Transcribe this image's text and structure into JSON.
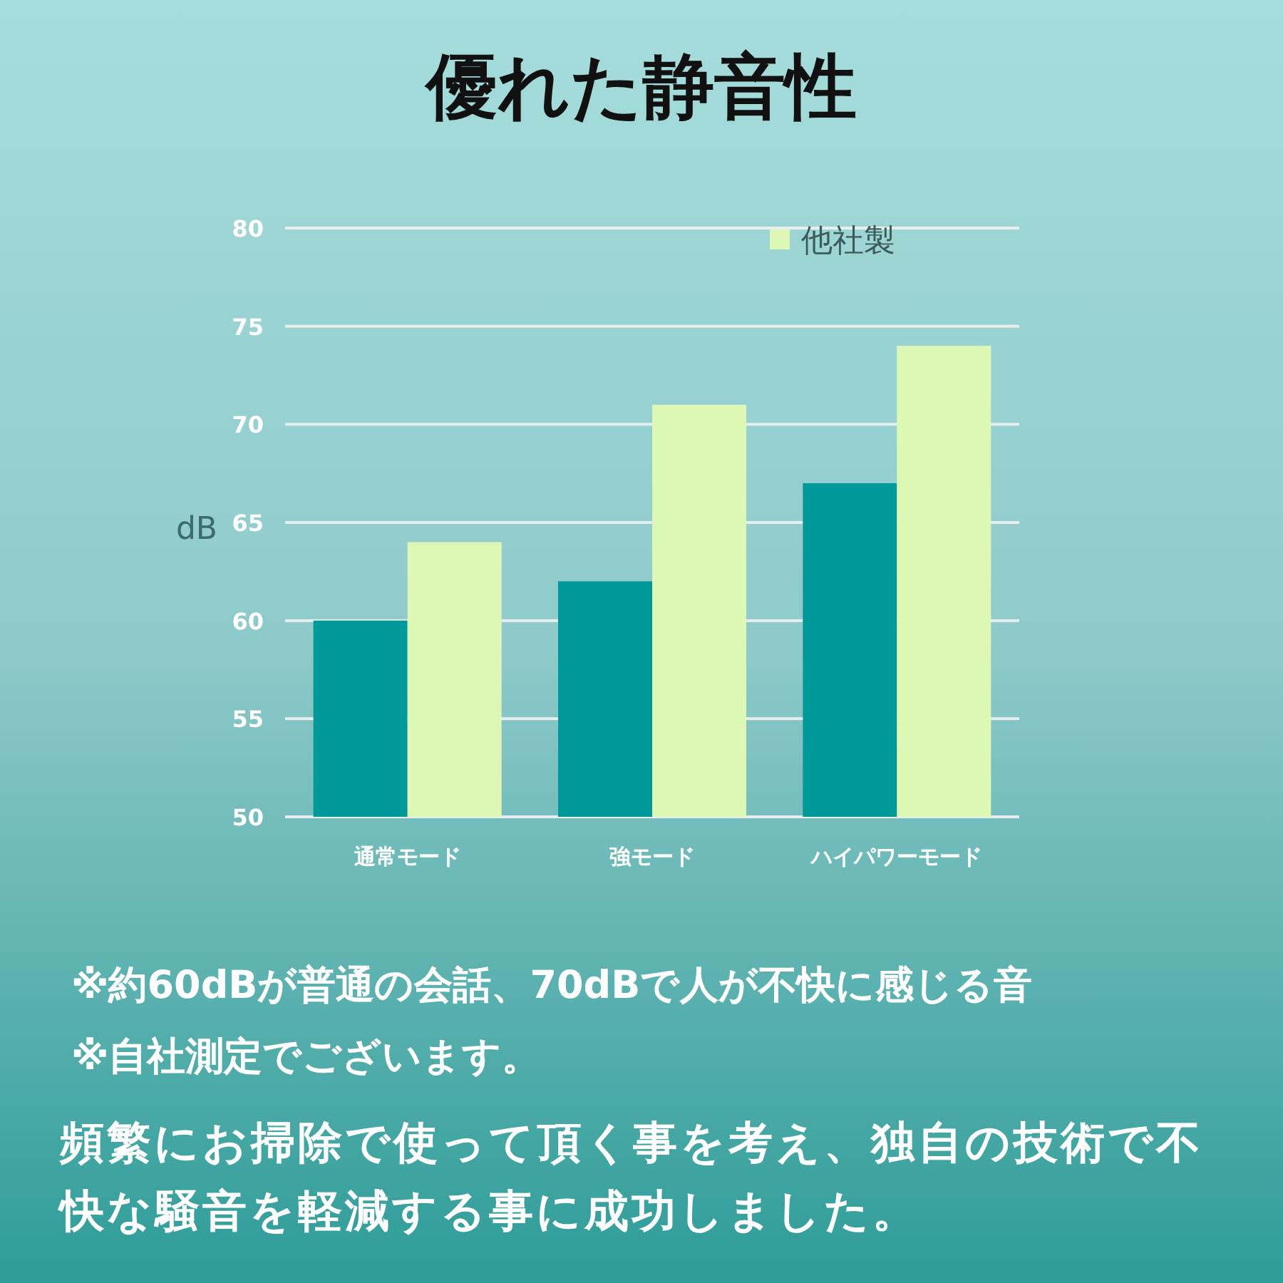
{
  "chart_data": {
    "type": "bar",
    "title": "優れた静音性",
    "ylabel": "dB",
    "categories": [
      "通常モード",
      "強モード",
      "ハイパワーモード"
    ],
    "series": [
      {
        "color": "#009999",
        "values": [
          60,
          62,
          67
        ]
      },
      {
        "name": "他社製",
        "color": "#ddf7b5",
        "values": [
          64,
          71,
          74
        ]
      }
    ],
    "ylim": [
      50,
      80
    ],
    "yticks": [
      50,
      55,
      60,
      65,
      70,
      75,
      80
    ],
    "grid": "y",
    "legend": "top",
    "annotations": [
      "※約60dBが普通の会話、70dBで人が不快に感じる音",
      "※自社測定でございます。",
      "頻繁にお掃除で使って頂く事を考え、独自の技術で不快な騒音を軽減する事に成功しました。"
    ]
  }
}
